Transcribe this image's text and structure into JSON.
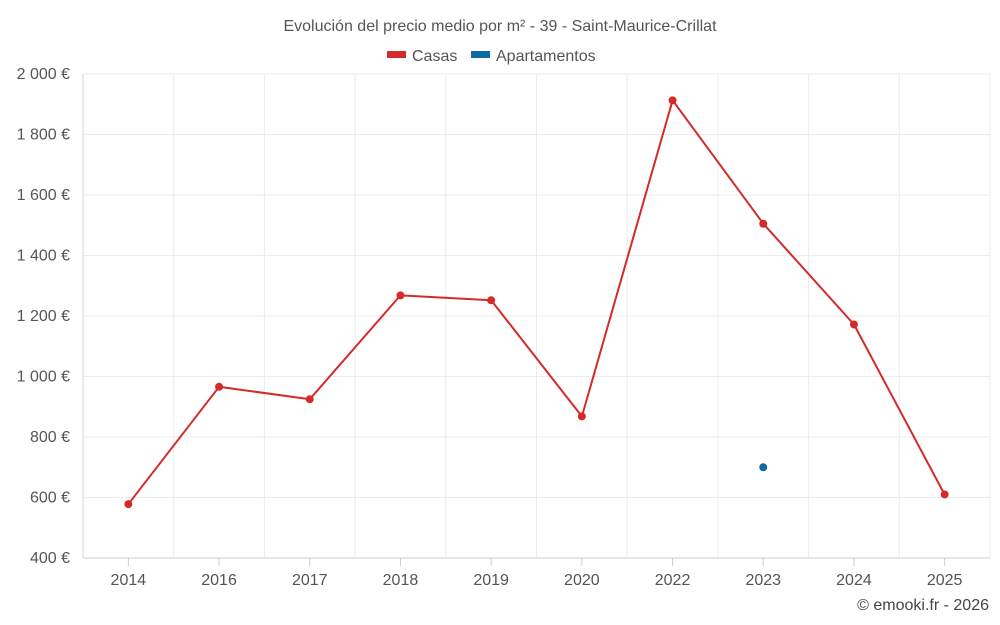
{
  "chart_data": {
    "type": "line",
    "title": "Evolución del precio medio por m² - 39 - Saint-Maurice-Crillat",
    "categories": [
      "2014",
      "2016",
      "2017",
      "2018",
      "2019",
      "2020",
      "2022",
      "2023",
      "2024",
      "2025"
    ],
    "series": [
      {
        "name": "Casas",
        "color": "#d42a2a",
        "values": [
          578,
          966,
          925,
          1268,
          1252,
          868,
          1913,
          1505,
          1172,
          610
        ]
      },
      {
        "name": "Apartamentos",
        "color": "#0e6aa0",
        "values": [
          null,
          null,
          null,
          null,
          null,
          null,
          null,
          700,
          null,
          null
        ]
      }
    ],
    "y_ticks": [
      400,
      600,
      800,
      1000,
      1200,
      1400,
      1600,
      1800,
      2000
    ],
    "y_tick_labels": [
      "400 €",
      "600 €",
      "800 €",
      "1 000 €",
      "1 200 €",
      "1 400 €",
      "1 600 €",
      "1 800 €",
      "2 000 €"
    ],
    "ylim": [
      400,
      2000
    ],
    "xlabel": "",
    "ylabel": "",
    "grid": true,
    "legend_position": "top-center",
    "credit": "© emooki.fr - 2026"
  }
}
